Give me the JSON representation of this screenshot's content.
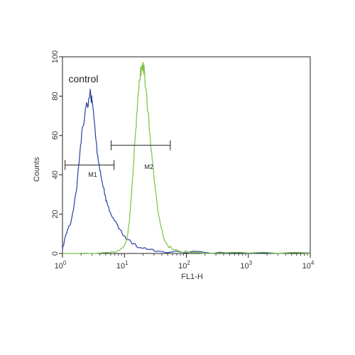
{
  "chart_data": {
    "type": "line",
    "xlabel": "FL1-H",
    "ylabel": "Counts",
    "x_scale": "log",
    "xlim": [
      1,
      10000
    ],
    "ylim": [
      0,
      100
    ],
    "x_ticks": [
      {
        "value": 1,
        "base": "10",
        "exp": "0"
      },
      {
        "value": 10,
        "base": "10",
        "exp": "1"
      },
      {
        "value": 100,
        "base": "10",
        "exp": "2"
      },
      {
        "value": 1000,
        "base": "10",
        "exp": "3"
      },
      {
        "value": 10000,
        "base": "10",
        "exp": "4"
      }
    ],
    "y_ticks": [
      "0",
      "20",
      "40",
      "60",
      "80",
      "100"
    ],
    "grid": false,
    "annotations": [
      {
        "text": "control",
        "x": 1.25,
        "y": 87
      },
      {
        "text": "M1",
        "x": 2.6,
        "y": 39
      },
      {
        "text": "M2",
        "x": 21,
        "y": 43
      }
    ],
    "markers": [
      {
        "label": "M1",
        "x_start": 1.1,
        "x_end": 6.8,
        "y": 45
      },
      {
        "label": "M2",
        "x_start": 6.1,
        "x_end": 55,
        "y": 55
      }
    ],
    "series": [
      {
        "color": "#2a3fa0",
        "x": [
          1,
          1.1,
          1.2,
          1.35,
          1.5,
          1.7,
          1.9,
          2.1,
          2.3,
          2.5,
          2.7,
          2.85,
          3.0,
          3.2,
          3.4,
          3.7,
          4.0,
          4.4,
          4.8,
          5.3,
          5.9,
          6.6,
          7.5,
          8.5,
          9.8,
          11.5,
          14,
          18,
          25,
          40,
          80,
          200,
          600,
          2000,
          10000
        ],
        "y": [
          2,
          8,
          12,
          15,
          22,
          33,
          50,
          64,
          71,
          76,
          79,
          81,
          78,
          70,
          60,
          50,
          42,
          36,
          30,
          25,
          21,
          18,
          15,
          12,
          9,
          7,
          5,
          3,
          2,
          1,
          0.8,
          0.5,
          0.4,
          0.3,
          0.2
        ]
      },
      {
        "color": "#7cc242",
        "x": [
          1,
          5,
          8,
          10,
          11,
          12,
          13,
          14,
          15,
          16,
          17,
          18,
          19,
          20,
          21,
          22,
          24,
          26,
          28,
          31,
          34,
          38,
          43,
          50,
          60,
          80,
          120,
          300,
          1000,
          10000
        ],
        "y": [
          0,
          0.5,
          1.5,
          4,
          8,
          16,
          30,
          45,
          60,
          72,
          82,
          90,
          95,
          97,
          93,
          84,
          72,
          60,
          48,
          35,
          24,
          15,
          8,
          4,
          2,
          1,
          0.5,
          0.3,
          0.2,
          0
        ]
      }
    ]
  }
}
